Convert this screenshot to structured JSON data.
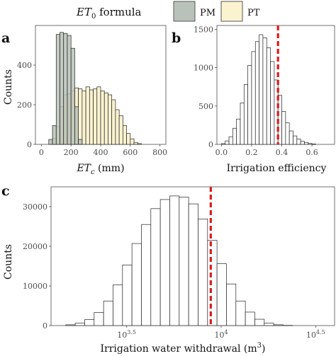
{
  "legend": {
    "title_main": "ET",
    "title_sub": "0",
    "title_rest": " formula",
    "entries": [
      {
        "label": "PM",
        "color": "#b9c2b9"
      },
      {
        "label": "PT",
        "color": "#fbf2d0"
      }
    ]
  },
  "chart_data": [
    {
      "panel": "a",
      "type": "bar",
      "xlabel_main": "ET",
      "xlabel_sub": "c",
      "xlabel_rest": " (mm)",
      "ylabel": "Counts",
      "xlim": [
        -40,
        840
      ],
      "ylim": [
        0,
        600
      ],
      "xticks": [
        0,
        200,
        400,
        600,
        800
      ],
      "yticks": [
        0,
        200,
        400
      ],
      "grid": false,
      "series": [
        {
          "name": "PT",
          "color": "#fbf2d0",
          "bin_start": 75,
          "bin_width": 25,
          "values": [
            30,
            90,
            190,
            250,
            255,
            270,
            285,
            280,
            270,
            290,
            275,
            280,
            290,
            270,
            260,
            250,
            225,
            175,
            145,
            95,
            55,
            28,
            10,
            4
          ]
        },
        {
          "name": "PM",
          "color": "#b9c2b9",
          "bin_start": 50,
          "bin_width": 25,
          "values": [
            25,
            95,
            555,
            565,
            560,
            550,
            485,
            190,
            25
          ]
        }
      ]
    },
    {
      "panel": "b",
      "type": "bar",
      "xlabel": "Irrigation efficiency",
      "ylabel": "",
      "xlim": [
        -0.03,
        0.75
      ],
      "ylim": [
        0,
        1550
      ],
      "xticks": [
        "0.0",
        "0.2",
        "0.4",
        "0.6"
      ],
      "yticks": [
        "0",
        "500",
        "1000",
        "1500"
      ],
      "grid": false,
      "bin_start": 0.0,
      "bin_width": 0.025,
      "values": [
        10,
        45,
        100,
        210,
        330,
        540,
        780,
        1030,
        1210,
        1340,
        1430,
        1390,
        1260,
        1080,
        840,
        640,
        430,
        280,
        175,
        110,
        70,
        40,
        25,
        12,
        5
      ],
      "reference_line": {
        "x": 0.375,
        "color": "#dd1c1c"
      }
    },
    {
      "panel": "c",
      "type": "bar",
      "xlabel_main": "Irrigation water withdrawal (m",
      "xlabel_sup": "3",
      "xlabel_rest": ")",
      "ylabel": "Counts",
      "x_scale": "log10",
      "xlim_log10": [
        3.1,
        4.6
      ],
      "ylim": [
        0,
        35000
      ],
      "xticks": [
        {
          "base": "10",
          "exp": "3.5"
        },
        {
          "base": "10",
          "exp": "4"
        },
        {
          "base": "10",
          "exp": "4.5"
        }
      ],
      "yticks": [
        "0",
        "10000",
        "20000",
        "30000"
      ],
      "grid": false,
      "bin_start_log10": 3.178,
      "bin_width_log10": 0.05,
      "values": [
        200,
        600,
        1500,
        3300,
        6200,
        10300,
        15300,
        20700,
        25500,
        29500,
        31800,
        32700,
        32400,
        30700,
        26900,
        21500,
        15600,
        10500,
        6200,
        3400,
        1600,
        600,
        200,
        50
      ],
      "reference_line": {
        "x_log10": 3.945,
        "color": "#dd1c1c"
      }
    }
  ]
}
